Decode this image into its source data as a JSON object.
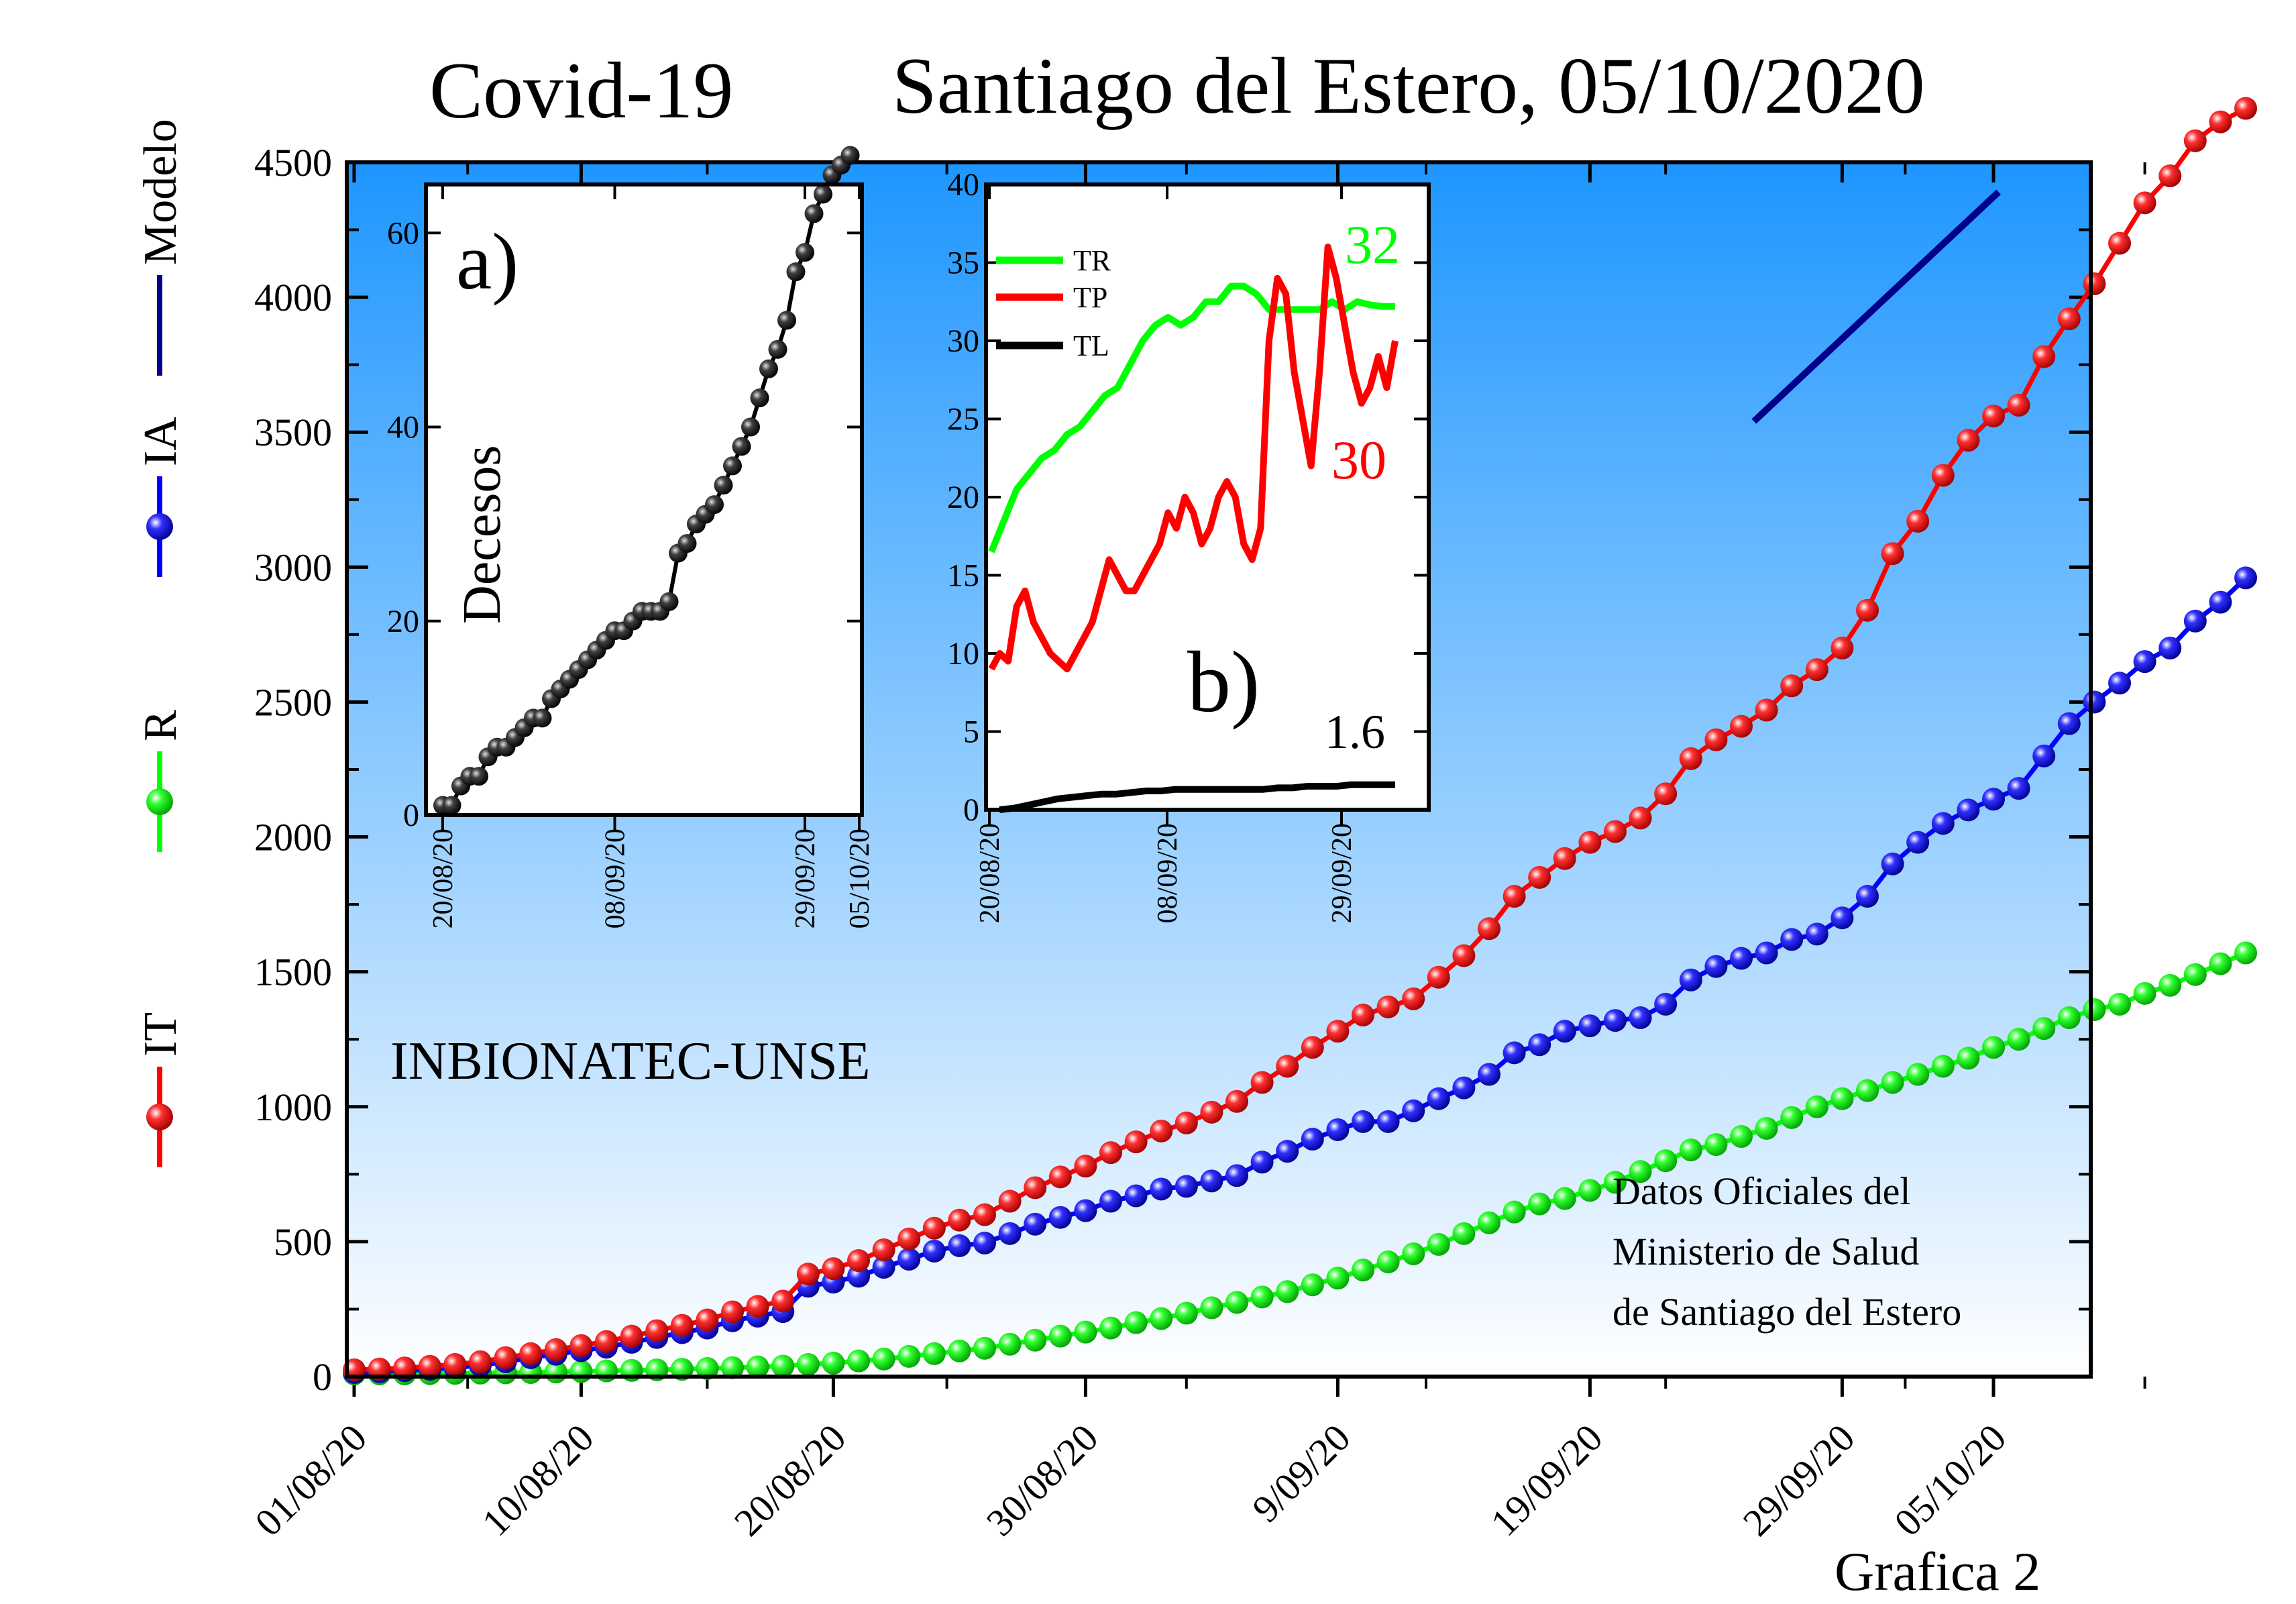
{
  "title_left": "Covid-19",
  "title_right": "Santiago del Estero, 05/10/2020",
  "footer": "Grafica 2",
  "institution": "INBIONATEC-UNSE",
  "source_note": [
    "Datos Oficiales del",
    "Ministerio de Salud",
    "de Santiago del Estero"
  ],
  "colors": {
    "IT": "#ff0000",
    "R": "#00ff00",
    "IA": "#0000ff",
    "Modelo": "#00008b",
    "TR": "#00ff00",
    "TP": "#ff0000",
    "TL": "#000000"
  },
  "chart_data": [
    {
      "type": "line",
      "ylim": [
        0,
        4500
      ],
      "y_ticks": [
        "0",
        "500",
        "1000",
        "1500",
        "2000",
        "2500",
        "3000",
        "3500",
        "4000",
        "4500"
      ],
      "x_ticks": [
        "01/08/20",
        "10/08/20",
        "20/08/20",
        "30/08/20",
        "9/09/20",
        "19/09/20",
        "29/09/20",
        "05/10/20"
      ],
      "legend": [
        "IT",
        "R",
        "IA",
        "Modelo"
      ],
      "series": [
        {
          "name": "IT",
          "values": [
            25,
            28,
            32,
            38,
            45,
            55,
            70,
            85,
            100,
            115,
            130,
            150,
            170,
            190,
            210,
            240,
            260,
            280,
            380,
            400,
            430,
            470,
            510,
            550,
            580,
            600,
            650,
            700,
            740,
            780,
            830,
            870,
            910,
            940,
            980,
            1020,
            1090,
            1150,
            1220,
            1280,
            1340,
            1370,
            1400,
            1480,
            1560,
            1660,
            1780,
            1850,
            1920,
            1980,
            2020,
            2070,
            2160,
            2290,
            2360,
            2410,
            2470,
            2560,
            2620,
            2700,
            2840,
            3050,
            3170,
            3340,
            3470,
            3560,
            3600,
            3780,
            3920,
            4050,
            4200,
            4350,
            4450,
            4580,
            4650,
            4700
          ]
        },
        {
          "name": "R",
          "values": [
            10,
            10,
            10,
            11,
            12,
            13,
            14,
            15,
            17,
            19,
            21,
            23,
            25,
            27,
            30,
            33,
            36,
            39,
            45,
            50,
            58,
            65,
            75,
            85,
            95,
            105,
            120,
            135,
            150,
            165,
            180,
            200,
            215,
            235,
            255,
            275,
            295,
            315,
            340,
            365,
            395,
            425,
            455,
            490,
            530,
            570,
            610,
            640,
            660,
            690,
            720,
            760,
            800,
            840,
            860,
            890,
            920,
            960,
            1000,
            1030,
            1060,
            1090,
            1120,
            1150,
            1180,
            1220,
            1250,
            1290,
            1330,
            1360,
            1380,
            1420,
            1450,
            1490,
            1530,
            1570
          ]
        },
        {
          "name": "IA",
          "values": [
            15,
            18,
            22,
            27,
            33,
            42,
            55,
            70,
            83,
            96,
            109,
            127,
            145,
            163,
            180,
            207,
            224,
            241,
            335,
            350,
            372,
            405,
            435,
            465,
            485,
            495,
            530,
            565,
            590,
            615,
            650,
            670,
            695,
            705,
            725,
            745,
            795,
            835,
            880,
            915,
            945,
            945,
            985,
            1030,
            1070,
            1120,
            1200,
            1230,
            1280,
            1300,
            1320,
            1330,
            1380,
            1470,
            1520,
            1550,
            1570,
            1620,
            1640,
            1700,
            1780,
            1900,
            1980,
            2050,
            2100,
            2140,
            2180,
            2300,
            2420,
            2500,
            2570,
            2650,
            2700,
            2800,
            2870,
            2960
          ]
        },
        {
          "name": "Modelo",
          "x_range": [
            "25/09/20",
            "05/10/20"
          ],
          "values": [
            3540,
            4390
          ]
        }
      ]
    },
    {
      "type": "line",
      "label": "a)",
      "ylabel": "Decesos",
      "ylim": [
        0,
        65
      ],
      "y_ticks": [
        "0",
        "20",
        "40",
        "60"
      ],
      "x_ticks": [
        "20/08/20",
        "08/09/20",
        "29/09/20",
        "05/10/20"
      ],
      "series": [
        {
          "name": "Decesos",
          "values": [
            1,
            1,
            3,
            4,
            4,
            6,
            7,
            7,
            8,
            9,
            10,
            10,
            12,
            13,
            14,
            15,
            16,
            17,
            18,
            19,
            19,
            20,
            21,
            21,
            21,
            22,
            27,
            28,
            30,
            31,
            32,
            34,
            36,
            38,
            40,
            43,
            46,
            48,
            51,
            56,
            58,
            62,
            64,
            66,
            67,
            68
          ]
        }
      ]
    },
    {
      "type": "line",
      "label": "b)",
      "ylim": [
        0,
        40
      ],
      "y_ticks": [
        "0",
        "5",
        "10",
        "15",
        "20",
        "25",
        "30",
        "35",
        "40"
      ],
      "x_ticks": [
        "20/08/20",
        "08/09/20",
        "29/09/20"
      ],
      "legend": [
        "TR",
        "TP",
        "TL"
      ],
      "annotations": {
        "TR_last": "32",
        "TP_last": "30",
        "TL_last": "1.6"
      },
      "series": [
        {
          "name": "TR",
          "values": [
            16.5,
            18.5,
            20.5,
            21.5,
            22.5,
            23,
            24,
            24.5,
            25.5,
            26.5,
            27,
            28.5,
            30,
            31,
            31.5,
            31,
            31.5,
            32.5,
            32.5,
            33.5,
            33.5,
            33,
            32,
            32,
            32,
            32,
            32,
            32.5,
            32,
            32.5,
            32.3,
            32.2,
            32.2
          ]
        },
        {
          "name": "TP",
          "values": [
            9,
            10,
            9.5,
            13,
            14,
            12,
            11,
            10,
            9.5,
            9,
            10,
            11,
            12,
            14,
            16,
            15,
            14,
            14,
            15,
            16,
            17,
            19,
            18,
            20,
            19,
            17,
            18,
            20,
            21,
            20,
            17,
            16,
            18,
            30,
            34,
            33,
            28,
            25,
            22,
            28,
            36,
            34,
            31,
            28,
            26,
            27,
            29,
            27,
            30
          ]
        },
        {
          "name": "TL",
          "values": [
            0,
            0.1,
            0.3,
            0.5,
            0.7,
            0.8,
            0.9,
            1,
            1,
            1.1,
            1.2,
            1.2,
            1.3,
            1.3,
            1.3,
            1.3,
            1.3,
            1.3,
            1.3,
            1.4,
            1.4,
            1.5,
            1.5,
            1.5,
            1.6,
            1.6,
            1.6,
            1.6
          ]
        }
      ]
    }
  ]
}
